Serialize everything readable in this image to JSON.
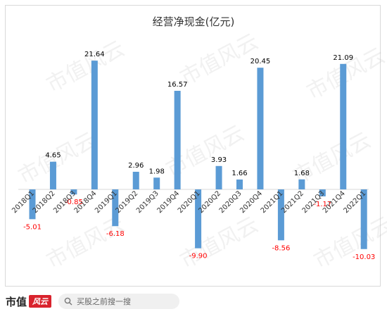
{
  "chart_data": {
    "type": "bar",
    "title": "经营净现金(亿元)",
    "categories": [
      "2018Q1",
      "2018Q2",
      "2018Q3",
      "2018Q4",
      "2019Q1",
      "2019Q2",
      "2019Q3",
      "2019Q4",
      "2020Q1",
      "2020Q2",
      "2020Q3",
      "2020Q4",
      "2021Q1",
      "2021Q2",
      "2021Q3",
      "2021Q4",
      "2022Q1"
    ],
    "series": [
      {
        "values": [
          -5.01,
          4.65,
          -0.85,
          21.64,
          -6.18,
          2.96,
          1.98,
          16.57,
          -9.9,
          3.93,
          1.66,
          20.45,
          -8.56,
          1.68,
          -1.17,
          21.09,
          -10.03
        ],
        "labels": [
          "-5.01",
          "4.65",
          "-0.85",
          "21.64",
          "-6.18",
          "2.96",
          "1.98",
          "16.57",
          "-9.90",
          "3.93",
          "1.66",
          "20.45",
          "-8.56",
          "1.68",
          "-1.17",
          "21.09",
          "-10.03"
        ]
      }
    ],
    "ylim": [
      -12,
      24
    ],
    "grid": false,
    "legend": "none",
    "colors": {
      "bar": "#5b9bd5",
      "positive_label": "#000000",
      "negative_label": "#ff0000",
      "axis": "#d9d9d9"
    }
  },
  "watermark": "市值风云",
  "footer": {
    "brand": "市值",
    "brand_tag": "风云",
    "search_placeholder": "买股之前搜一搜"
  }
}
